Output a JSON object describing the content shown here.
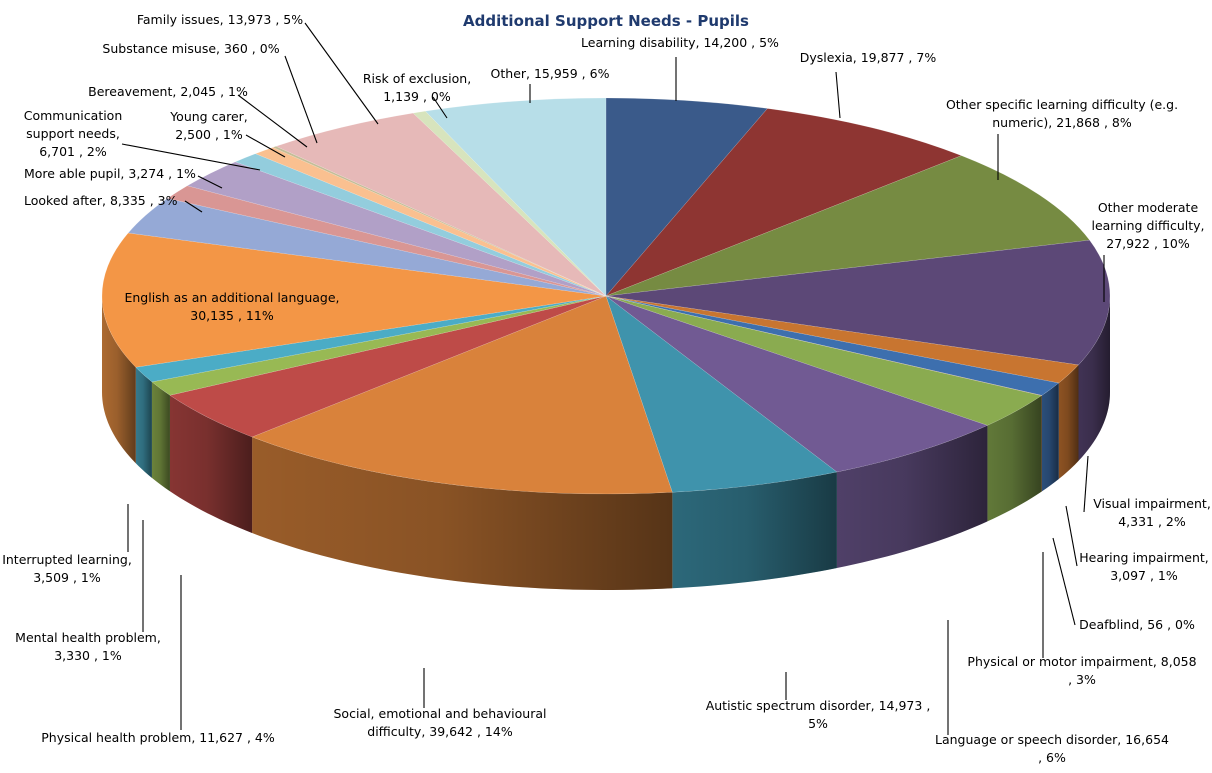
{
  "chart_data": {
    "type": "pie",
    "title": "Additional Support Needs - Pupils",
    "legend": "none",
    "slices": [
      {
        "label": "Learning disability",
        "value": 14200,
        "percent": "5%",
        "color": "#3a5a8a"
      },
      {
        "label": "Dyslexia",
        "value": 19877,
        "percent": "7%",
        "color": "#8e3532"
      },
      {
        "label": "Other specific learning difficulty (e.g. numeric)",
        "value": 21868,
        "percent": "8%",
        "color": "#768b42"
      },
      {
        "label": "Other moderate learning difficulty",
        "value": 27922,
        "percent": "10%",
        "color": "#5c4877"
      },
      {
        "label": "Visual impairment",
        "value": 4331,
        "percent": "2%",
        "color": "#c87530"
      },
      {
        "label": "Hearing impairment",
        "value": 3097,
        "percent": "1%",
        "color": "#3d6fae"
      },
      {
        "label": "Deafblind",
        "value": 56,
        "percent": "0%",
        "color": "#b8443f"
      },
      {
        "label": "Physical or motor impairment",
        "value": 8058,
        "percent": "3%",
        "color": "#8aab50"
      },
      {
        "label": "Language or speech disorder",
        "value": 16654,
        "percent": "6%",
        "color": "#715a93"
      },
      {
        "label": "Autistic spectrum disorder",
        "value": 14973,
        "percent": "5%",
        "color": "#3f93ac"
      },
      {
        "label": "Social, emotional and behavioural difficulty",
        "value": 39642,
        "percent": "14%",
        "color": "#d9823b"
      },
      {
        "label": "Physical health problem",
        "value": 11627,
        "percent": "4%",
        "color": "#be4b48"
      },
      {
        "label": "Mental health problem",
        "value": 3330,
        "percent": "1%",
        "color": "#98b954"
      },
      {
        "label": "Interrupted learning",
        "value": 3509,
        "percent": "1%",
        "color": "#4bacc6"
      },
      {
        "label": "English as an additional language",
        "value": 30135,
        "percent": "11%",
        "color": "#f39646"
      },
      {
        "label": "Looked after",
        "value": 8335,
        "percent": "3%",
        "color": "#95a9d6"
      },
      {
        "label": "More able pupil",
        "value": 3274,
        "percent": "1%",
        "color": "#d99694"
      },
      {
        "label": "Communication support needs",
        "value": 6701,
        "percent": "2%",
        "color": "#b1a0c7"
      },
      {
        "label": "Young carer",
        "value": 2500,
        "percent": "1%",
        "color": "#93cddd"
      },
      {
        "label": "Bereavement",
        "value": 2045,
        "percent": "1%",
        "color": "#fac090"
      },
      {
        "label": "Substance misuse",
        "value": 360,
        "percent": "0%",
        "color": "#c4bd97"
      },
      {
        "label": "Family issues",
        "value": 13973,
        "percent": "5%",
        "color": "#e6b9b8"
      },
      {
        "label": "Risk of exclusion",
        "value": 1139,
        "percent": "0%",
        "color": "#d7e4bd"
      },
      {
        "label": "Other",
        "value": 15959,
        "percent": "6%",
        "color": "#b7dee8"
      }
    ],
    "labels": [
      {
        "lines": [
          "Learning disability,  14,200 , 5%"
        ]
      },
      {
        "lines": [
          "Dyslexia,  19,877 , 7%"
        ]
      },
      {
        "lines": [
          "Other specific learning difficulty (e.g.",
          "numeric),  21,868 , 8%"
        ]
      },
      {
        "lines": [
          "Other moderate",
          "learning difficulty,",
          "27,922 , 10%"
        ]
      },
      {
        "lines": [
          "Visual impairment,",
          "4,331 , 2%"
        ]
      },
      {
        "lines": [
          "Hearing impairment,",
          "3,097 , 1%"
        ]
      },
      {
        "lines": [
          "Deafblind,  56 , 0%"
        ]
      },
      {
        "lines": [
          "Physical or motor impairment,  8,058",
          ", 3%"
        ]
      },
      {
        "lines": [
          "Language or speech disorder,  16,654",
          ", 6%"
        ]
      },
      {
        "lines": [
          "Autistic spectrum disorder,  14,973 ,",
          "5%"
        ]
      },
      {
        "lines": [
          "Social, emotional and behavioural",
          "difficulty,  39,642 , 14%"
        ]
      },
      {
        "lines": [
          "Physical health problem,  11,627 , 4%"
        ]
      },
      {
        "lines": [
          "Mental health problem,",
          "3,330 , 1%"
        ]
      },
      {
        "lines": [
          "Interrupted learning,",
          "3,509 , 1%"
        ]
      },
      {
        "lines": [
          "English as an additional language,",
          "30,135 , 11%"
        ]
      },
      {
        "lines": [
          "Looked after,  8,335 , 3%"
        ]
      },
      {
        "lines": [
          "More able pupil,  3,274 , 1%"
        ]
      },
      {
        "lines": [
          "Communication",
          "support needs,",
          "6,701 , 2%"
        ]
      },
      {
        "lines": [
          "Young carer,",
          "2,500 , 1%"
        ]
      },
      {
        "lines": [
          "Bereavement,  2,045 , 1%"
        ]
      },
      {
        "lines": [
          "Substance misuse,  360 , 0%"
        ]
      },
      {
        "lines": [
          "Family issues,  13,973 , 5%"
        ]
      },
      {
        "lines": [
          "Risk of exclusion,",
          "1,139 , 0%"
        ]
      },
      {
        "lines": [
          "Other,  15,959 , 6%"
        ]
      }
    ]
  }
}
